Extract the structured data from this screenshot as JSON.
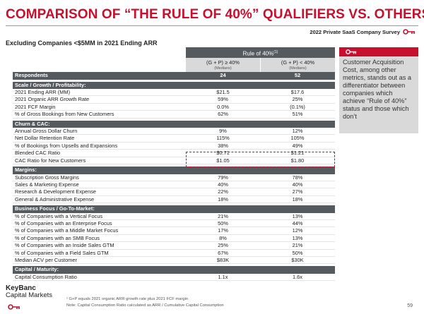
{
  "title": "COMPARISON OF “THE RULE OF 40%” QUALIFIERS VS. OTHERS",
  "survey_label": "2022 Private SaaS Company Survey",
  "subtitle": "Excluding Companies <$5MM in 2021 Ending ARR",
  "header": {
    "group_label": "Rule of 40%",
    "group_sup": "(1)",
    "col1_label": "(G + P) ≥ 40%",
    "col1_sub": "(Medians)",
    "col2_label": "(G + P) < 40%",
    "col2_sub": "(Medians)"
  },
  "respondents": {
    "label": "Respondents",
    "v1": "24",
    "v2": "52"
  },
  "sections": [
    {
      "title": "Scale / Growth / Profitability:",
      "rows": [
        {
          "label": "2021 Ending ARR (MM)",
          "v1": "$21.5",
          "v2": "$17.6"
        },
        {
          "label": "2021 Organic ARR Growth Rate",
          "v1": "59%",
          "v2": "25%"
        },
        {
          "label": "2021 FCF Margin",
          "v1": "0.0%",
          "v2": "(0.1%)"
        },
        {
          "label": "% of Gross Bookings from New Customers",
          "v1": "62%",
          "v2": "51%"
        }
      ]
    },
    {
      "title": "Churn & CAC:",
      "rows": [
        {
          "label": "Annual Gross Dollar Churn",
          "v1": "9%",
          "v2": "12%"
        },
        {
          "label": "Net Dollar Retention Rate",
          "v1": "115%",
          "v2": "105%"
        },
        {
          "label": "% of Bookings from Upsells and Expansions",
          "v1": "38%",
          "v2": "49%"
        },
        {
          "label": "Blended CAC Ratio",
          "v1": "$0.71",
          "v2": "$1.21"
        },
        {
          "label": "CAC Ratio for New Customers",
          "v1": "$1.05",
          "v2": "$1.80"
        }
      ]
    },
    {
      "title": "Margins:",
      "rows": [
        {
          "label": "Subscription Gross Margins",
          "v1": "79%",
          "v2": "78%"
        },
        {
          "label": "Sales & Marketing Expense",
          "v1": "40%",
          "v2": "40%"
        },
        {
          "label": "Research & Development Expense",
          "v1": "22%",
          "v2": "27%"
        },
        {
          "label": "General & Administrative Expense",
          "v1": "18%",
          "v2": "18%"
        }
      ]
    },
    {
      "title": "Business Focus / Go-To-Market:",
      "rows": [
        {
          "label": "% of Companies with a Vertical Focus",
          "v1": "21%",
          "v2": "13%"
        },
        {
          "label": "% of Companies with an Enterprise Focus",
          "v1": "50%",
          "v2": "44%"
        },
        {
          "label": "% of Companies with a Middle Market Focus",
          "v1": "17%",
          "v2": "12%"
        },
        {
          "label": "% of Companies with an SMB Focus",
          "v1": "8%",
          "v2": "13%"
        },
        {
          "label": "% of Companies with an Inside Sales GTM",
          "v1": "25%",
          "v2": "21%"
        },
        {
          "label": "% of Companies with a Field Sales GTM",
          "v1": "67%",
          "v2": "50%"
        },
        {
          "label": "Median ACV per Customer",
          "v1": "$83K",
          "v2": "$30K"
        }
      ]
    },
    {
      "title": "Capital / Maturity:",
      "rows": [
        {
          "label": "Capital Consumption Ratio",
          "v1": "1.1x",
          "v2": "1.6x"
        }
      ]
    }
  ],
  "sidebar_text": "Customer Acquisition Cost, among other metrics, stands out as a differentiator between companies which achieve “Rule of 40%” status and those which don’t",
  "brand_line1": "KeyBanc",
  "brand_line2": "Capital Markets",
  "footnote1": "¹ G+P equals 2021 organic ARR growth rate plus 2021 FCF margin",
  "footnote2": "Note: Capital Consumption Ratio calculated as ARR / Cumulative Capital Consumption",
  "page_number": "59",
  "colors": {
    "accent": "#c8102e",
    "section_bg": "#555a5f",
    "sidebar_bg": "#d9d9d9"
  }
}
